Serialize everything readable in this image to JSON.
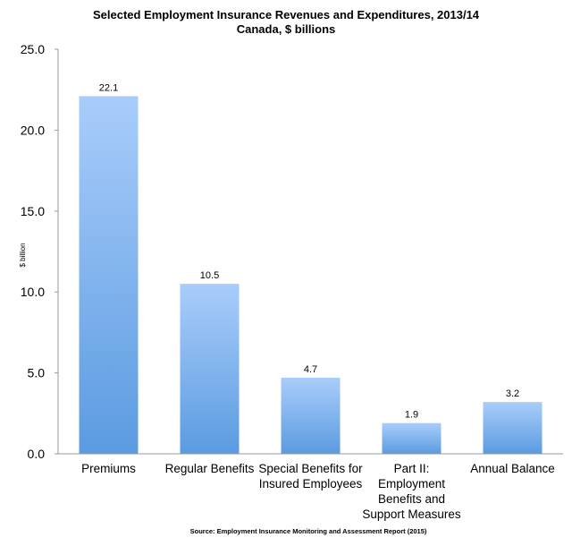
{
  "chart_data": {
    "type": "bar",
    "title": "Selected Employment Insurance Revenues and Expenditures, 2013/14",
    "subtitle": "Canada, $ billions",
    "ylabel": "$ billion",
    "xlabel": "",
    "ylim": [
      0,
      25
    ],
    "yticks": [
      "0.0",
      "5.0",
      "10.0",
      "15.0",
      "20.0",
      "25.0"
    ],
    "categories": [
      [
        "Premiums"
      ],
      [
        "Regular Benefits"
      ],
      [
        "Special Benefits for",
        "Insured Employees"
      ],
      [
        "Part II:",
        "Employment",
        "Benefits and",
        "Support Measures"
      ],
      [
        "Annual Balance"
      ]
    ],
    "values": [
      22.1,
      10.5,
      4.7,
      1.9,
      3.2
    ],
    "data_labels": [
      "22.1",
      "10.5",
      "4.7",
      "1.9",
      "3.2"
    ],
    "source": "Source: Employment Insurance Monitoring and Assessment Report (2015)",
    "colors": {
      "bar_top": "#a9cdfb",
      "bar_bottom": "#5b9be0",
      "axis": "#9a9a9a"
    }
  }
}
